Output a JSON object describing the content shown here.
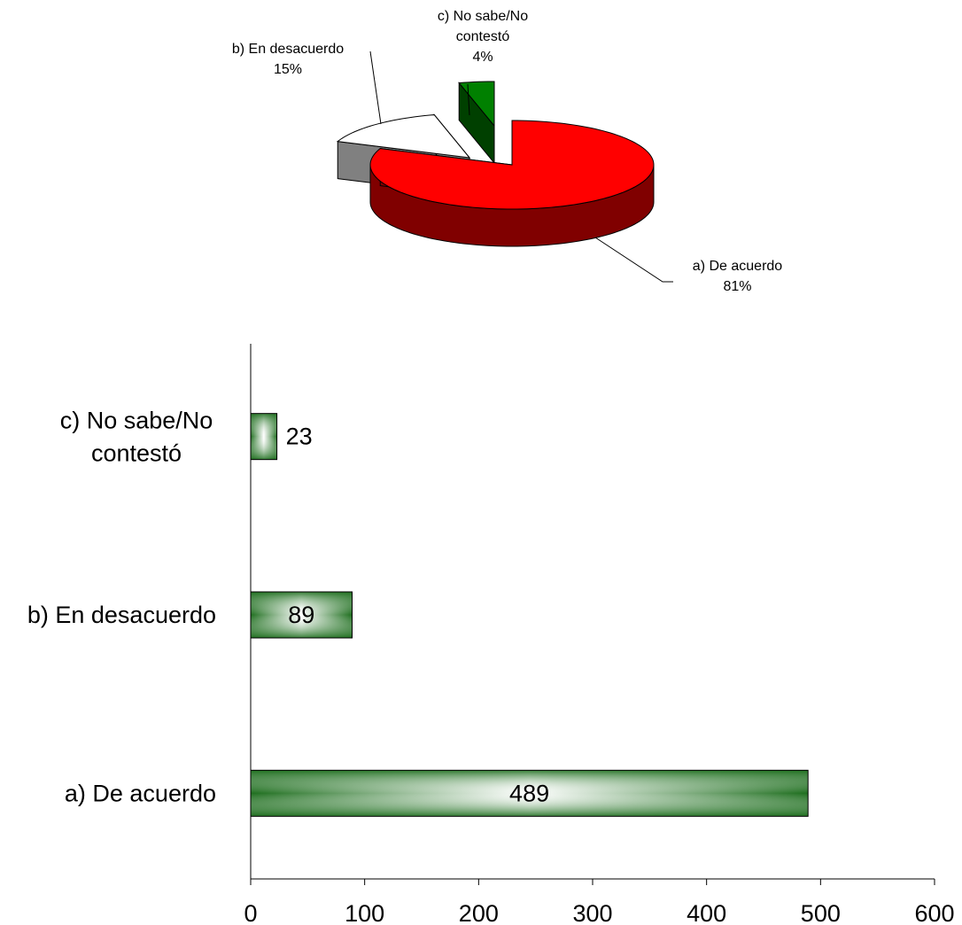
{
  "colors": {
    "pie_de_acuerdo_top": "#ff0000",
    "pie_de_acuerdo_side": "#800000",
    "pie_en_desacuerdo_top": "#ffffff",
    "pie_en_desacuerdo_side": "#808080",
    "pie_no_sabe_top": "#008000",
    "pie_no_sabe_side": "#004000",
    "bar_edge": "#1f6f1f",
    "bar_center": "#ffffff"
  },
  "chart_data": [
    {
      "type": "pie",
      "style": "3d-exploded",
      "slices": [
        {
          "key": "de_acuerdo",
          "label_line1": "a) De acuerdo",
          "label_line2": "81%",
          "percent": 81
        },
        {
          "key": "en_desacuerdo",
          "label_line1": "b) En desacuerdo",
          "label_line2": "15%",
          "percent": 15
        },
        {
          "key": "no_sabe",
          "label_line1": "c) No sabe/No",
          "label_line1b": "contestó",
          "label_line2": "4%",
          "percent": 4
        }
      ]
    },
    {
      "type": "bar",
      "orientation": "horizontal",
      "categories": [
        {
          "line1": "c) No sabe/No",
          "line2": "contestó",
          "value": 23,
          "value_label": "23"
        },
        {
          "line1": "b) En desacuerdo",
          "line2": "",
          "value": 89,
          "value_label": "89"
        },
        {
          "line1": "a) De acuerdo",
          "line2": "",
          "value": 489,
          "value_label": "489"
        }
      ],
      "xlim": [
        0,
        600
      ],
      "xticks": [
        "0",
        "100",
        "200",
        "300",
        "400",
        "500",
        "600"
      ],
      "grid": false,
      "legend": "none"
    }
  ]
}
